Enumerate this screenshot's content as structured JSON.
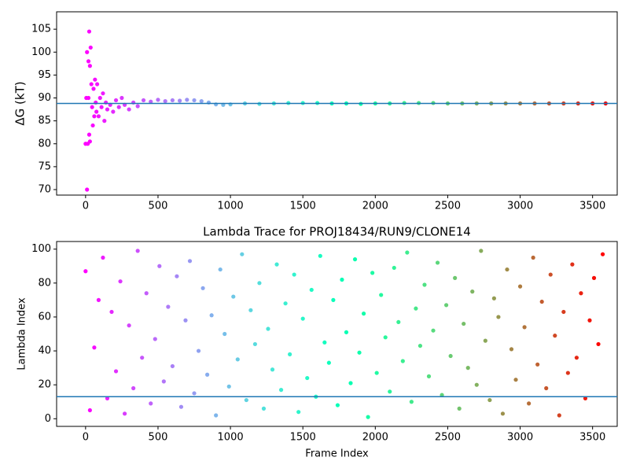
{
  "chart_data": [
    {
      "type": "scatter",
      "ylabel": "ΔG (kT)",
      "colormap": "rainbow",
      "hline": 88.8,
      "hline_color": "#1f77b4",
      "xlim": [
        -200,
        3670
      ],
      "ylim": [
        68.8,
        108.8
      ],
      "xticks": [
        0,
        500,
        1000,
        1500,
        2000,
        2500,
        3000,
        3500
      ],
      "yticks": [
        70,
        75,
        80,
        85,
        90,
        95,
        100,
        105
      ],
      "x": [
        0,
        5,
        10,
        10,
        15,
        20,
        20,
        25,
        25,
        30,
        30,
        35,
        40,
        45,
        50,
        55,
        60,
        65,
        70,
        75,
        80,
        90,
        100,
        110,
        120,
        130,
        140,
        150,
        170,
        190,
        210,
        230,
        250,
        270,
        300,
        330,
        360,
        400,
        450,
        500,
        550,
        600,
        650,
        700,
        750,
        800,
        850,
        900,
        950,
        1000,
        1100,
        1200,
        1300,
        1400,
        1500,
        1600,
        1700,
        1800,
        1900,
        2000,
        2100,
        2200,
        2300,
        2400,
        2500,
        2600,
        2700,
        2800,
        2900,
        3000,
        3100,
        3200,
        3300,
        3400,
        3500,
        3590
      ],
      "values": [
        80,
        90,
        70,
        100,
        80,
        90,
        98,
        104.5,
        82,
        97,
        80.5,
        101,
        93,
        88,
        84,
        92,
        86,
        94,
        89,
        87,
        93,
        86,
        90,
        88,
        91,
        85,
        89,
        87.5,
        88.5,
        87,
        89.5,
        88,
        90,
        88.5,
        87.5,
        89,
        88.2,
        89.5,
        89.2,
        89.6,
        89.3,
        89.5,
        89.4,
        89.6,
        89.5,
        89.3,
        89.0,
        88.6,
        88.5,
        88.6,
        88.8,
        88.7,
        88.8,
        88.9,
        88.9,
        88.9,
        88.8,
        88.8,
        88.7,
        88.8,
        88.8,
        88.9,
        88.9,
        88.9,
        88.8,
        88.8,
        88.8,
        88.8,
        88.8,
        88.8,
        88.8,
        88.8,
        88.8,
        88.8,
        88.8,
        88.8
      ]
    },
    {
      "type": "scatter",
      "title": "Lambda Trace for PROJ18434/RUN9/CLONE14",
      "xlabel": "Frame Index",
      "ylabel": "Lambda Index",
      "colormap": "rainbow",
      "hline": 13,
      "hline_color": "#1f77b4",
      "xlim": [
        -200,
        3670
      ],
      "ylim": [
        -4.5,
        104.5
      ],
      "xticks": [
        0,
        500,
        1000,
        1500,
        2000,
        2500,
        3000,
        3500
      ],
      "yticks": [
        0,
        20,
        40,
        60,
        80,
        100
      ],
      "x": [
        0,
        30,
        60,
        90,
        120,
        150,
        180,
        210,
        240,
        270,
        300,
        330,
        360,
        390,
        420,
        450,
        480,
        510,
        540,
        570,
        600,
        630,
        660,
        690,
        720,
        750,
        780,
        810,
        840,
        870,
        900,
        930,
        960,
        990,
        1020,
        1050,
        1080,
        1110,
        1140,
        1170,
        1200,
        1230,
        1260,
        1290,
        1320,
        1350,
        1380,
        1410,
        1440,
        1470,
        1500,
        1530,
        1560,
        1590,
        1620,
        1650,
        1680,
        1710,
        1740,
        1770,
        1800,
        1830,
        1860,
        1890,
        1920,
        1950,
        1980,
        2010,
        2040,
        2070,
        2100,
        2130,
        2160,
        2190,
        2220,
        2250,
        2280,
        2310,
        2340,
        2370,
        2400,
        2430,
        2460,
        2490,
        2520,
        2550,
        2580,
        2610,
        2640,
        2670,
        2700,
        2730,
        2760,
        2790,
        2820,
        2850,
        2880,
        2910,
        2940,
        2970,
        3000,
        3030,
        3060,
        3090,
        3120,
        3150,
        3180,
        3210,
        3240,
        3270,
        3300,
        3330,
        3360,
        3390,
        3420,
        3450,
        3480,
        3510,
        3540,
        3570
      ],
      "values": [
        87,
        5,
        42,
        70,
        95,
        12,
        63,
        28,
        81,
        3,
        55,
        18,
        99,
        36,
        74,
        9,
        47,
        90,
        22,
        66,
        31,
        84,
        7,
        58,
        93,
        15,
        40,
        77,
        26,
        61,
        2,
        88,
        50,
        19,
        72,
        35,
        97,
        11,
        64,
        44,
        80,
        6,
        53,
        29,
        91,
        17,
        68,
        38,
        85,
        4,
        59,
        24,
        76,
        13,
        96,
        45,
        33,
        70,
        8,
        82,
        51,
        21,
        94,
        39,
        62,
        1,
        86,
        27,
        73,
        48,
        16,
        89,
        57,
        34,
        98,
        10,
        65,
        43,
        79,
        25,
        52,
        92,
        14,
        67,
        37,
        83,
        6,
        56,
        30,
        75,
        20,
        99,
        46,
        11,
        71,
        60,
        3,
        88,
        41,
        23,
        78,
        54,
        9,
        95,
        32,
        69,
        18,
        85,
        49,
        2,
        63,
        27,
        91,
        36,
        74,
        12,
        58,
        83,
        44,
        97
      ]
    }
  ]
}
